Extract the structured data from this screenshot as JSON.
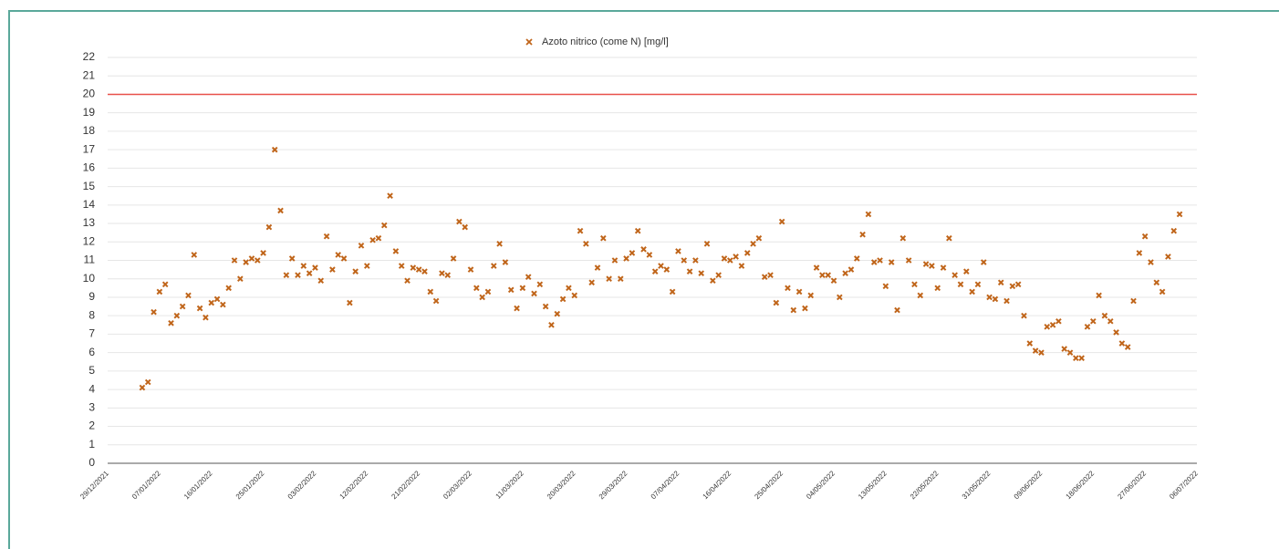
{
  "chart_data": {
    "type": "scatter",
    "series": [
      {
        "name": "Azoto nitrico (come N) [mg/l]",
        "color": "#c0651a",
        "values": [
          null,
          null,
          null,
          null,
          null,
          null,
          4.1,
          4.4,
          8.2,
          9.3,
          9.7,
          7.6,
          8.0,
          8.5,
          9.1,
          11.3,
          8.4,
          7.9,
          8.7,
          8.9,
          8.6,
          9.5,
          11.0,
          10.0,
          10.9,
          11.1,
          11.0,
          11.4,
          12.8,
          17.0,
          13.7,
          10.2,
          11.1,
          10.2,
          10.7,
          10.3,
          10.6,
          9.9,
          12.3,
          10.5,
          11.3,
          11.1,
          8.7,
          10.4,
          11.8,
          10.7,
          12.1,
          12.2,
          12.9,
          14.5,
          11.5,
          10.7,
          9.9,
          10.6,
          10.5,
          10.4,
          9.3,
          8.8,
          10.3,
          10.2,
          11.1,
          13.1,
          12.8,
          10.5,
          9.5,
          9.0,
          9.3,
          10.7,
          11.9,
          10.9,
          9.4,
          8.4,
          9.5,
          10.1,
          9.2,
          9.7,
          8.5,
          7.5,
          8.1,
          8.9,
          9.5,
          9.1,
          12.6,
          11.9,
          9.8,
          10.6,
          12.2,
          10.0,
          11.0,
          10.0,
          11.1,
          11.4,
          12.6,
          11.6,
          11.3,
          10.4,
          10.7,
          10.5,
          9.3,
          11.5,
          11.0,
          10.4,
          11.0,
          10.3,
          11.9,
          9.9,
          10.2,
          11.1,
          11.0,
          11.2,
          10.7,
          11.4,
          11.9,
          12.2,
          10.1,
          10.2,
          8.7,
          13.1,
          9.5,
          8.3,
          9.3,
          8.4,
          9.1,
          10.6,
          10.2,
          10.2,
          9.9,
          9.0,
          10.3,
          10.5,
          11.1,
          12.4,
          13.5,
          10.9,
          11.0,
          9.6,
          10.9,
          8.3,
          12.2,
          11.0,
          9.7,
          9.1,
          10.8,
          10.7,
          9.5,
          10.6,
          12.2,
          10.2,
          9.7,
          10.4,
          9.3,
          9.7,
          10.9,
          9.0,
          8.9,
          9.8,
          8.8,
          9.6,
          9.7,
          8.0,
          6.5,
          6.1,
          6.0,
          7.4,
          7.5,
          7.7,
          6.2,
          6.0,
          5.7,
          5.7,
          7.4,
          7.7,
          9.1,
          8.0,
          7.7,
          7.1,
          6.5,
          6.3,
          8.8,
          11.4,
          12.3,
          10.9,
          9.8,
          9.3,
          11.2,
          12.6,
          13.5,
          null,
          null,
          null
        ]
      }
    ],
    "categories": [
      "29/12/2021",
      null,
      null,
      null,
      null,
      null,
      null,
      null,
      null,
      "07/01/2022",
      null,
      null,
      null,
      null,
      null,
      null,
      null,
      null,
      "16/01/2022",
      null,
      null,
      null,
      null,
      null,
      null,
      null,
      null,
      "25/01/2022",
      null,
      null,
      null,
      null,
      null,
      null,
      null,
      null,
      "03/02/2022",
      null,
      null,
      null,
      null,
      null,
      null,
      null,
      null,
      "12/02/2022",
      null,
      null,
      null,
      null,
      null,
      null,
      null,
      null,
      "21/02/2022",
      null,
      null,
      null,
      null,
      null,
      null,
      null,
      null,
      "02/03/2022",
      null,
      null,
      null,
      null,
      null,
      null,
      null,
      null,
      "11/03/2022",
      null,
      null,
      null,
      null,
      null,
      null,
      null,
      null,
      "20/03/2022",
      null,
      null,
      null,
      null,
      null,
      null,
      null,
      null,
      "29/03/2022",
      null,
      null,
      null,
      null,
      null,
      null,
      null,
      null,
      "07/04/2022",
      null,
      null,
      null,
      null,
      null,
      null,
      null,
      null,
      "16/04/2022",
      null,
      null,
      null,
      null,
      null,
      null,
      null,
      null,
      "25/04/2022",
      null,
      null,
      null,
      null,
      null,
      null,
      null,
      null,
      "04/05/2022",
      null,
      null,
      null,
      null,
      null,
      null,
      null,
      null,
      "13/05/2022",
      null,
      null,
      null,
      null,
      null,
      null,
      null,
      null,
      "22/05/2022",
      null,
      null,
      null,
      null,
      null,
      null,
      null,
      null,
      "31/05/2022",
      null,
      null,
      null,
      null,
      null,
      null,
      null,
      null,
      "09/06/2022",
      null,
      null,
      null,
      null,
      null,
      null,
      null,
      null,
      "18/06/2022",
      null,
      null,
      null,
      null,
      null,
      null,
      null,
      null,
      "27/06/2022",
      null,
      null,
      null,
      null,
      null,
      null,
      null,
      null,
      "06/07/2022"
    ],
    "ylim": [
      0,
      22
    ],
    "yticks": [
      0,
      1,
      2,
      3,
      4,
      5,
      6,
      7,
      8,
      9,
      10,
      11,
      12,
      13,
      14,
      15,
      16,
      17,
      18,
      19,
      20,
      21,
      22
    ],
    "grid": true,
    "legend": "top",
    "reference_line": {
      "value": 20,
      "color": "#e8504a"
    }
  }
}
